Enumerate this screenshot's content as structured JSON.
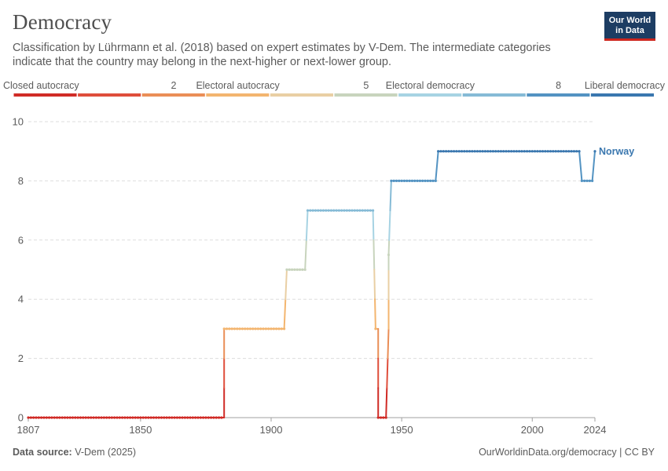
{
  "header": {
    "title": "Democracy",
    "subtitle": "Classification by Lührmann et al. (2018) based on expert estimates by V-Dem. The intermediate categories indicate that the country may belong in the next-higher or next-lower group."
  },
  "logo": {
    "line1": "Our World",
    "line2": "in Data"
  },
  "footer": {
    "source_label": "Data source:",
    "source_value": "V-Dem (2025)",
    "link": "OurWorldinData.org/democracy | CC BY"
  },
  "colors": {
    "grid": "#dddddd",
    "axis": "#a0a0a0",
    "label": "#5b5b5b",
    "series": "#3a77af",
    "scale": [
      "#d02b26",
      "#df4e3b",
      "#ea8e57",
      "#f3b56f",
      "#e9cfa4",
      "#c8d4bd",
      "#a7d3e3",
      "#86bbd6",
      "#5393c2",
      "#3a77af"
    ]
  },
  "chart_data": {
    "type": "line",
    "title": "Democracy",
    "xlabel": "",
    "ylabel": "",
    "xlim": [
      1807,
      2024
    ],
    "ylim": [
      0,
      10
    ],
    "x_ticks": [
      1807,
      1850,
      1900,
      1950,
      2000,
      2024
    ],
    "y_ticks": [
      0,
      2,
      4,
      6,
      8,
      10
    ],
    "legend": {
      "position": "top",
      "labels": [
        {
          "text": "Closed autocracy",
          "at": 0
        },
        {
          "text": "2",
          "at": 2
        },
        {
          "text": "Electoral autocracy",
          "at": 3
        },
        {
          "text": "5",
          "at": 5
        },
        {
          "text": "Electoral democracy",
          "at": 6
        },
        {
          "text": "8",
          "at": 8
        },
        {
          "text": "Liberal democracy",
          "at": 9
        }
      ]
    },
    "series": [
      {
        "name": "Norway",
        "values": [
          [
            1807,
            0
          ],
          [
            1882,
            0
          ],
          [
            1882,
            3
          ],
          [
            1905,
            3
          ],
          [
            1906,
            5
          ],
          [
            1913,
            5
          ],
          [
            1914,
            7
          ],
          [
            1939,
            7
          ],
          [
            1940,
            3
          ],
          [
            1941,
            3
          ],
          [
            1941,
            0
          ],
          [
            1944,
            0
          ],
          [
            1945,
            3
          ],
          [
            1945,
            5.5
          ],
          [
            1946,
            8
          ],
          [
            1963,
            8
          ],
          [
            1964,
            9
          ],
          [
            2018,
            9
          ],
          [
            2019,
            8
          ],
          [
            2023,
            8
          ],
          [
            2024,
            9
          ]
        ]
      }
    ]
  }
}
